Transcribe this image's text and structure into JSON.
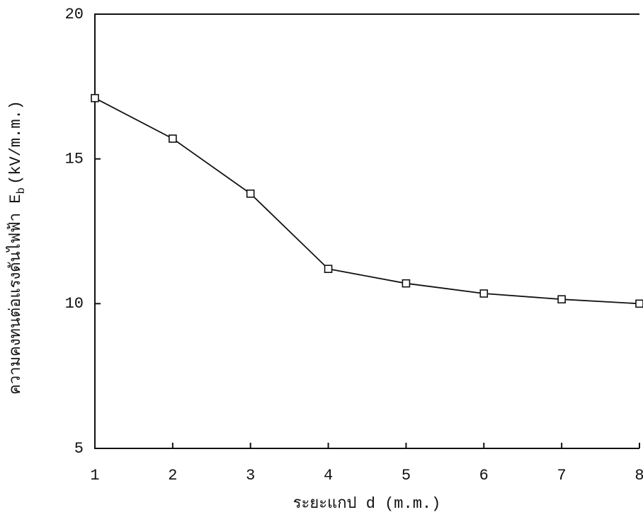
{
  "chart_data": {
    "type": "line",
    "xlabel": "ระยะแกป d (m.m.)",
    "ylabel": "ความคงทนต่อแรงดันไฟฟ้า E",
    "ylabel_subscript": "b",
    "ylabel_unit": "(kV/m.m.)",
    "x": [
      1,
      2,
      3,
      4,
      5,
      6,
      7,
      8
    ],
    "series": [
      {
        "color": "#111111",
        "values": [
          17.1,
          15.7,
          13.8,
          11.2,
          10.7,
          10.35,
          10.15,
          10.0
        ]
      }
    ],
    "xlim": [
      1,
      8
    ],
    "xticks": [
      1,
      2,
      3,
      4,
      5,
      6,
      7,
      8
    ],
    "ylim": [
      5,
      20
    ],
    "yticks": [
      5,
      10,
      15,
      20
    ],
    "marker": "square",
    "grid": false
  }
}
